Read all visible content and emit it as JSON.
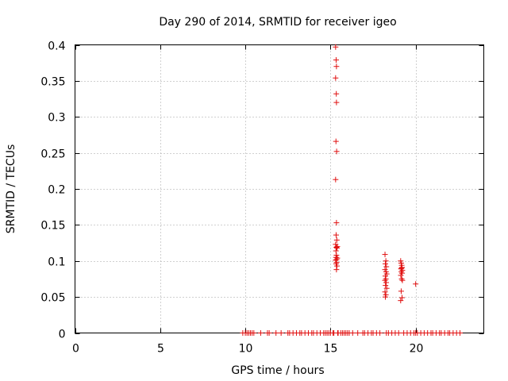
{
  "chart_data": {
    "type": "scatter",
    "title": "Day 290 of 2014, SRMTID for receiver igeo",
    "xlabel": "GPS time / hours",
    "ylabel": "SRMTID / TECUs",
    "xlim": [
      0,
      24
    ],
    "ylim": [
      0,
      0.4
    ],
    "xticks": [
      0,
      5,
      10,
      15,
      20
    ],
    "xtick_labels": [
      "0",
      "5",
      "10",
      "15",
      "20"
    ],
    "yticks": [
      0,
      0.05,
      0.1,
      0.15,
      0.2,
      0.25,
      0.3,
      0.35,
      0.4
    ],
    "ytick_labels": [
      "0",
      "0.05",
      "0.1",
      "0.15",
      "0.2",
      "0.25",
      "0.3",
      "0.35",
      "0.4"
    ],
    "grid": true,
    "marker": "+",
    "color": "#e01010",
    "series": [
      {
        "name": "SRMTID",
        "x": [
          9.85,
          10.0,
          10.1,
          10.2,
          10.3,
          10.4,
          10.5,
          10.9,
          11.3,
          11.4,
          11.8,
          12.1,
          12.5,
          12.6,
          12.8,
          13.0,
          13.2,
          13.3,
          13.5,
          13.7,
          13.9,
          14.0,
          14.2,
          14.4,
          14.6,
          14.7,
          14.8,
          14.9,
          15.0,
          15.15,
          15.2,
          15.3,
          15.33,
          15.35,
          15.3,
          15.34,
          15.35,
          15.32,
          15.36,
          15.3,
          15.35,
          15.33,
          15.37,
          15.3,
          15.34,
          15.38,
          15.32,
          15.35,
          15.4,
          15.3,
          15.36,
          15.33,
          15.38,
          15.35,
          15.4,
          15.32,
          15.36,
          15.45,
          15.42,
          15.6,
          15.7,
          15.8,
          15.9,
          16.0,
          16.1,
          16.3,
          16.6,
          16.9,
          17.0,
          17.2,
          17.4,
          17.5,
          17.7,
          17.9,
          18.2,
          18.25,
          18.22,
          18.28,
          18.2,
          18.26,
          18.3,
          18.22,
          18.25,
          18.2,
          18.27,
          18.23,
          18.3,
          18.2,
          18.25,
          18.22,
          18.28,
          18.4,
          18.6,
          18.8,
          19.0,
          19.12,
          19.15,
          19.18,
          19.2,
          19.14,
          19.22,
          19.16,
          19.2,
          19.13,
          19.18,
          19.22,
          19.15,
          19.2,
          19.12,
          19.17,
          19.3,
          19.5,
          19.7,
          19.9,
          20.0,
          20.1,
          20.3,
          20.5,
          20.7,
          20.9,
          21.0,
          21.2,
          21.4,
          21.5,
          21.7,
          21.9,
          22.0,
          22.2,
          22.4,
          22.6,
          20.0
        ],
        "y": [
          0,
          0,
          0,
          0,
          0,
          0,
          0,
          0,
          0,
          0,
          0,
          0,
          0,
          0,
          0,
          0,
          0,
          0,
          0,
          0,
          0,
          0,
          0,
          0,
          0,
          0,
          0,
          0,
          0,
          0,
          0,
          0.397,
          0.379,
          0.37,
          0.354,
          0.332,
          0.32,
          0.266,
          0.252,
          0.213,
          0.153,
          0.136,
          0.129,
          0.123,
          0.119,
          0.118,
          0.114,
          0.108,
          0.104,
          0.101,
          0.098,
          0.096,
          0.093,
          0.088,
          0.12,
          0.105,
          0.102,
          0,
          0,
          0,
          0,
          0,
          0,
          0,
          0,
          0,
          0,
          0,
          0,
          0,
          0,
          0,
          0,
          0,
          0.109,
          0.1,
          0.096,
          0.092,
          0.088,
          0.085,
          0.082,
          0.079,
          0.075,
          0.073,
          0.07,
          0.066,
          0.062,
          0.057,
          0.053,
          0.05,
          0,
          0,
          0,
          0,
          0,
          0.1,
          0.097,
          0.094,
          0.091,
          0.089,
          0.087,
          0.085,
          0.083,
          0.08,
          0.075,
          0.073,
          0.058,
          0.049,
          0.045,
          0.09,
          0,
          0,
          0,
          0,
          0,
          0,
          0,
          0,
          0,
          0,
          0,
          0,
          0,
          0,
          0,
          0,
          0,
          0,
          0,
          0,
          0.068
        ]
      }
    ]
  }
}
